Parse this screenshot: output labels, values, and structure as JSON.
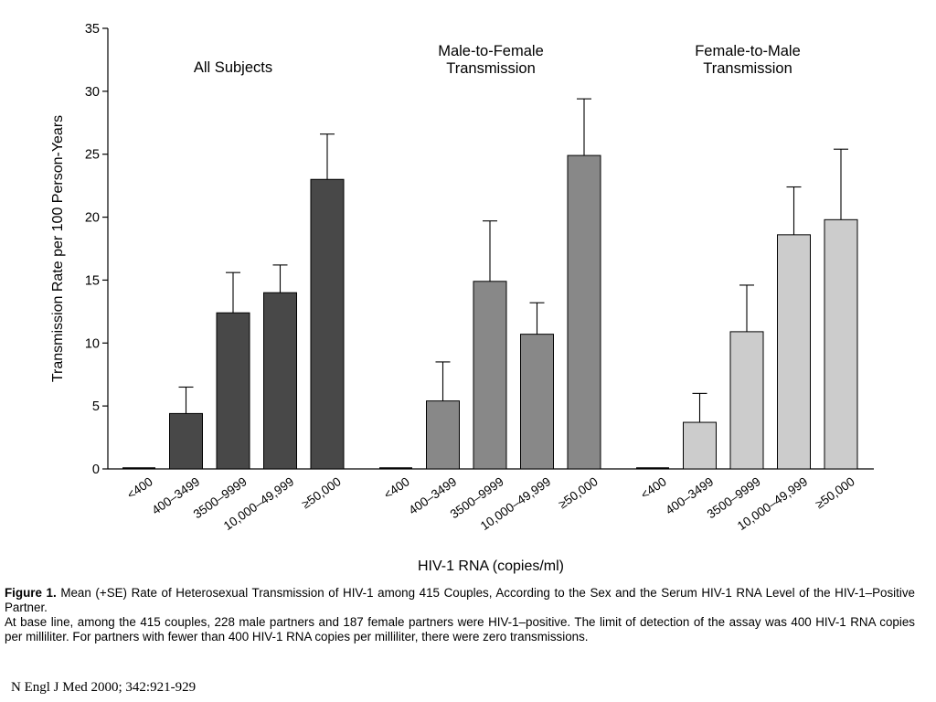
{
  "chart_data": {
    "type": "bar",
    "ylabel": "Transmission Rate per 100 Person-Years",
    "xlabel": "HIV-1 RNA (copies/ml)",
    "ylim": [
      0,
      35
    ],
    "yticks": [
      0,
      5,
      10,
      15,
      20,
      25,
      30,
      35
    ],
    "categories": [
      "<400",
      "400–3499",
      "3500–9999",
      "10,000–49,999",
      "≥50,000"
    ],
    "groups": [
      {
        "title_lines": [
          "All Subjects"
        ],
        "color": "#484848",
        "values": [
          0,
          4.4,
          12.4,
          14.0,
          23.0
        ],
        "error_plus": [
          null,
          6.5,
          15.6,
          16.2,
          26.6
        ]
      },
      {
        "title_lines": [
          "Male-to-Female",
          "Transmission"
        ],
        "color": "#888888",
        "values": [
          0,
          5.4,
          14.9,
          10.7,
          24.9
        ],
        "error_plus": [
          null,
          8.5,
          19.7,
          13.2,
          29.4
        ]
      },
      {
        "title_lines": [
          "Female-to-Male",
          "Transmission"
        ],
        "color": "#cccccc",
        "values": [
          0,
          3.7,
          10.9,
          18.6,
          19.8
        ],
        "error_plus": [
          null,
          6.0,
          14.6,
          22.4,
          25.4
        ]
      }
    ],
    "grid": false,
    "legend": "none"
  },
  "caption": {
    "label": "Figure 1.",
    "title": "Mean (+SE) Rate of Heterosexual Transmission of HIV-1 among 415 Couples, According to the Sex and the Serum HIV-1 RNA Level of the HIV-1–Positive Partner.",
    "body": "At base line, among the 415 couples, 228 male partners and 187 female partners were HIV-1–positive. The limit of detection of the assay was 400 HIV-1 RNA copies per milliliter. For partners with fewer than 400 HIV-1 RNA copies per milliliter, there were zero transmissions."
  },
  "citation": "N Engl J Med 2000; 342:921-929"
}
